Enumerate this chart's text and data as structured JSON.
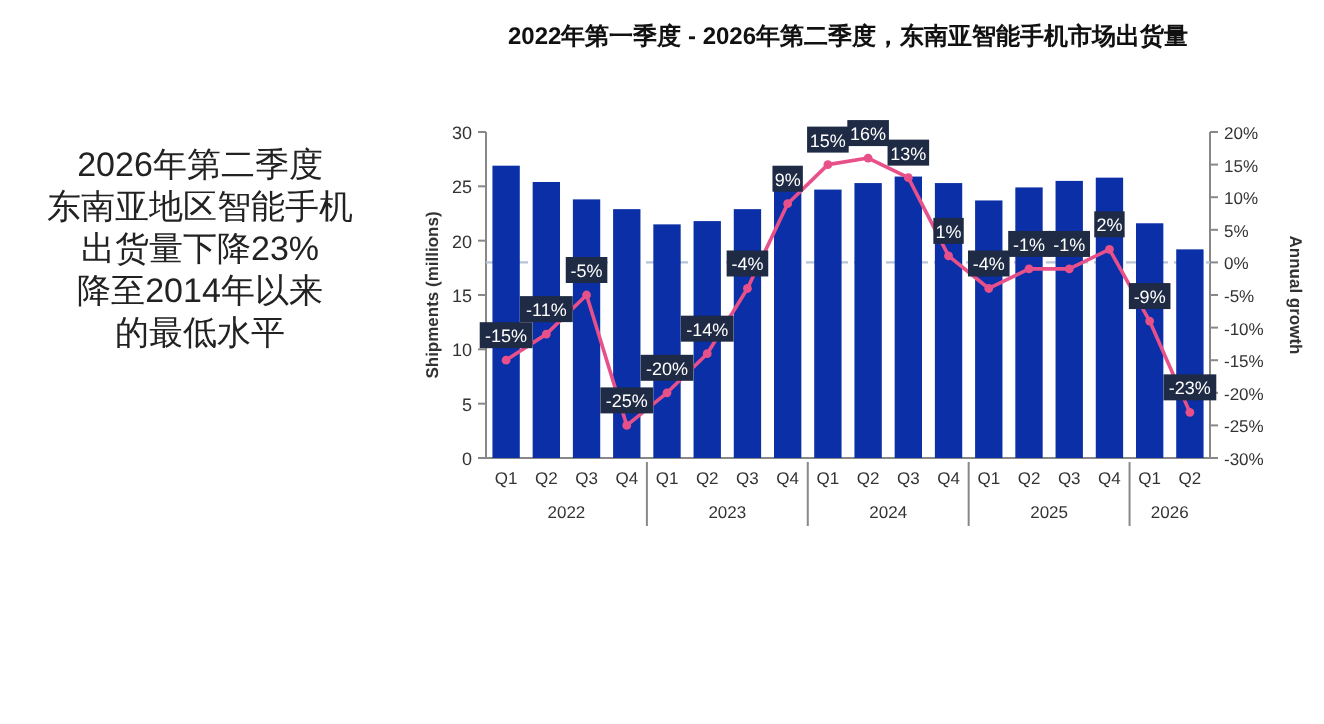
{
  "chart_data": {
    "type": "bar",
    "title": "2022年第一季度 - 2026年第二季度，东南亚智能手机市场出货量",
    "categories": [
      "Q1",
      "Q2",
      "Q3",
      "Q4",
      "Q1",
      "Q2",
      "Q3",
      "Q4",
      "Q1",
      "Q2",
      "Q3",
      "Q4",
      "Q1",
      "Q2",
      "Q3",
      "Q4",
      "Q1",
      "Q2"
    ],
    "series": [
      {
        "color": "#0b2fa6",
        "values": [
          26.9,
          25.4,
          23.8,
          22.9,
          21.5,
          21.8,
          22.9,
          25.1,
          24.7,
          25.3,
          25.9,
          25.3,
          23.7,
          24.9,
          25.5,
          25.8,
          21.6,
          19.2
        ]
      },
      {
        "type": "line",
        "axis": "y2",
        "color": "#e8508a",
        "marker": "circle",
        "values": [
          -15,
          -11,
          -5,
          -25,
          -20,
          -14,
          -4,
          9,
          15,
          16,
          13,
          1,
          -4,
          -1,
          -1,
          2,
          -9,
          -23
        ],
        "value_labels": [
          "-15%",
          "-11%",
          "-5%",
          "-25%",
          "-20%",
          "-14%",
          "-4%",
          "9%",
          "15%",
          "16%",
          "13%",
          "1%",
          "-4%",
          "-1%",
          "-1%",
          "2%",
          "-9%",
          "-23%"
        ]
      }
    ],
    "ylabel": "Shipments (millions)",
    "y2label": "Annual growth",
    "ylim": [
      0,
      30
    ],
    "yticks": [
      0,
      5,
      10,
      15,
      20,
      25,
      30
    ],
    "y2lim": [
      -30,
      20
    ],
    "y2ticks": [
      {
        "value": -30,
        "label": "-30%"
      },
      {
        "value": -25,
        "label": "-25%"
      },
      {
        "value": -20,
        "label": "-20%"
      },
      {
        "value": -15,
        "label": "-15%"
      },
      {
        "value": -10,
        "label": "-10%"
      },
      {
        "value": -5,
        "label": "-5%"
      },
      {
        "value": 0,
        "label": "0%"
      },
      {
        "value": 5,
        "label": "5%"
      },
      {
        "value": 10,
        "label": "10%"
      },
      {
        "value": 15,
        "label": "15%"
      },
      {
        "value": 20,
        "label": "20%"
      }
    ],
    "ref_lines": [
      {
        "axis": "y2",
        "value": 0,
        "color": "#b8c4d6",
        "line_style": "dashed"
      }
    ],
    "annotations": [
      "2026年第二季度",
      "东南亚地区智能手机",
      "出货量下降23%",
      "降至2014年以来",
      "的最低水平",
      "2022",
      "2023",
      "2024",
      "2025",
      "2026"
    ]
  }
}
